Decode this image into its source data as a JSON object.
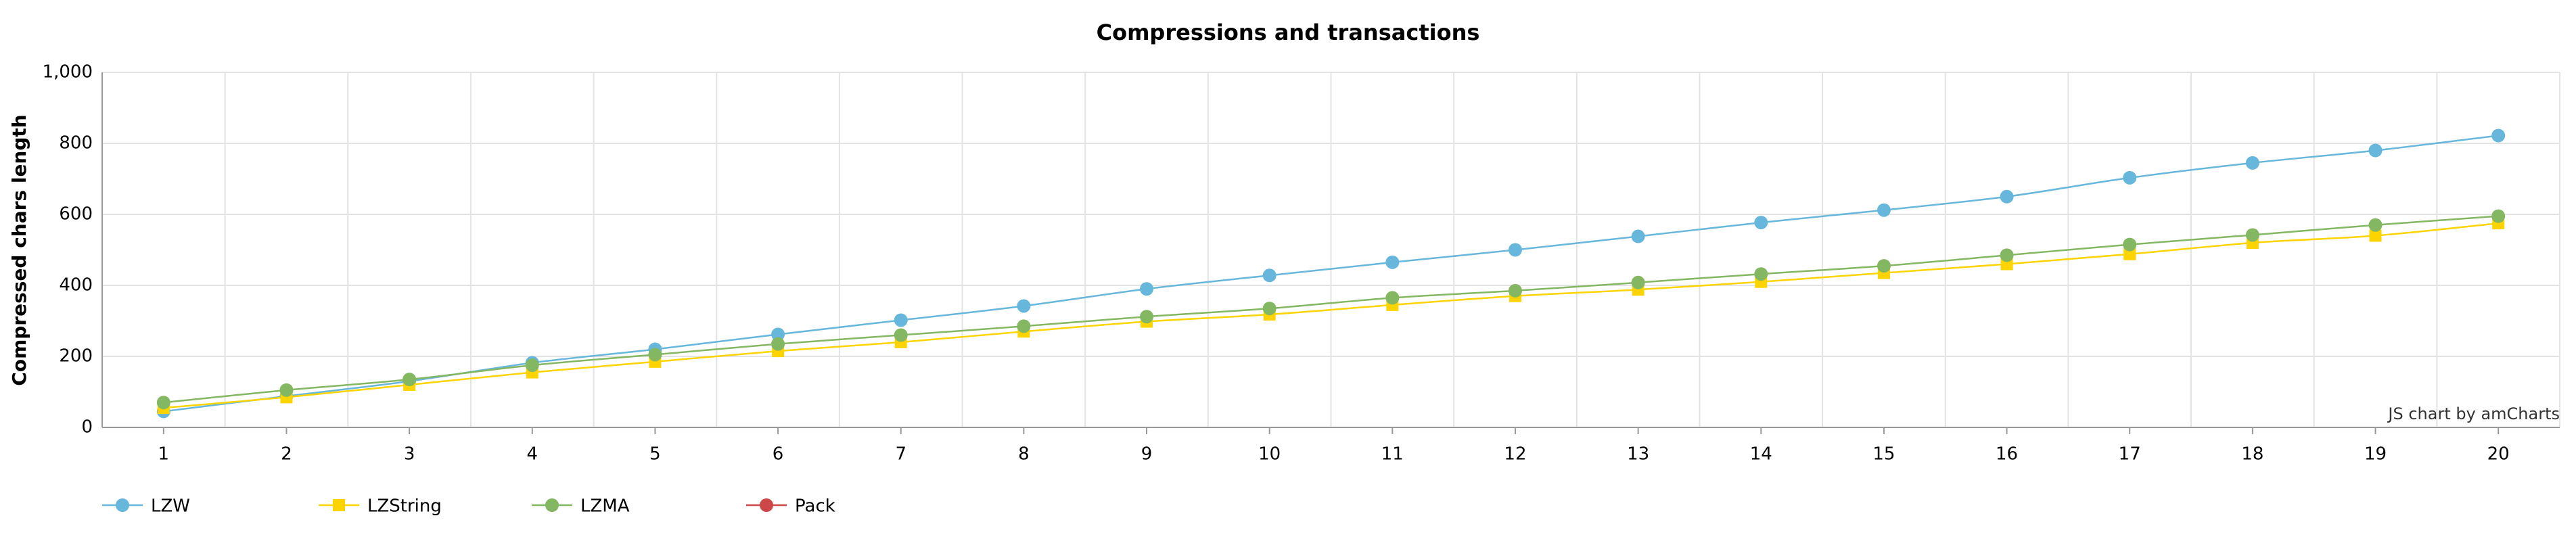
{
  "chart_data": {
    "type": "line",
    "title": "Compressions and transactions",
    "y_label": "Compressed chars length",
    "credit": "JS chart by amCharts",
    "categories": [
      "1",
      "2",
      "3",
      "4",
      "5",
      "6",
      "7",
      "8",
      "9",
      "10",
      "11",
      "12",
      "13",
      "14",
      "15",
      "16",
      "17",
      "18",
      "19",
      "20"
    ],
    "series": [
      {
        "name": "LZW",
        "color": "#67b7dc",
        "marker": "circle",
        "values": [
          45,
          88,
          130,
          182,
          220,
          262,
          302,
          342,
          390,
          428,
          465,
          500,
          538,
          577,
          612,
          650,
          703,
          745,
          780,
          822
        ]
      },
      {
        "name": "LZString",
        "color": "#fdd400",
        "marker": "square",
        "values": [
          55,
          85,
          120,
          155,
          185,
          215,
          240,
          270,
          298,
          318,
          345,
          370,
          388,
          410,
          435,
          460,
          488,
          520,
          540,
          575
        ]
      },
      {
        "name": "LZMA",
        "color": "#84b761",
        "marker": "circle",
        "values": [
          70,
          105,
          135,
          175,
          205,
          235,
          260,
          285,
          312,
          335,
          365,
          385,
          408,
          432,
          455,
          485,
          515,
          542,
          570,
          595
        ]
      },
      {
        "name": "Pack",
        "color": "#cc4748",
        "marker": "circle",
        "values": [
          null,
          null,
          null,
          null,
          null,
          null,
          null,
          null,
          null,
          null,
          null,
          null,
          null,
          null,
          null,
          null,
          null,
          null,
          null,
          null
        ]
      }
    ],
    "ylim": [
      0,
      1000
    ],
    "yticks": [
      0,
      200,
      400,
      600,
      800,
      {
        "value": 1000,
        "label": "1,000"
      }
    ],
    "grid": true,
    "smooth": true,
    "legend": "bottom-left"
  }
}
